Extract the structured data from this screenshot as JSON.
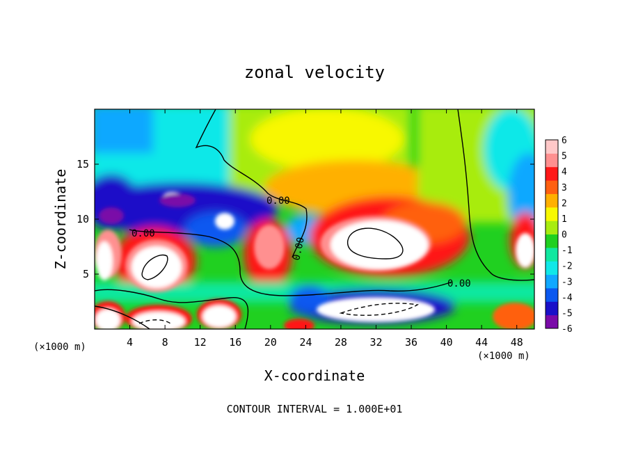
{
  "chart_data": {
    "type": "heatmap",
    "title": "zonal velocity",
    "xlabel": "X-coordinate",
    "ylabel": "Z-coordinate",
    "x_units": "(×1000 m)",
    "x_units_right": "(×1000 m)",
    "xlim": [
      0,
      50
    ],
    "ylim": [
      0,
      20
    ],
    "x_ticks": [
      4,
      8,
      12,
      16,
      20,
      24,
      28,
      32,
      36,
      40,
      44,
      48
    ],
    "y_ticks": [
      5,
      10,
      15
    ],
    "colorbar": {
      "min": -6,
      "max": 6,
      "ticks": [
        6,
        5,
        4,
        3,
        2,
        1,
        0,
        -1,
        -2,
        -3,
        -4,
        -5,
        -6
      ],
      "colors": [
        "#7a0aa8",
        "#1a10c8",
        "#0a58f0",
        "#10a8ff",
        "#10e8e8",
        "#10e8a0",
        "#20d020",
        "#a8ec10",
        "#f8f800",
        "#ffb000",
        "#ff6010",
        "#ff1818",
        "#ff9090",
        "#ffc8c8"
      ]
    },
    "values_beyond_colorbar": "white",
    "contour_interval": "CONTOUR INTERVAL = 1.000E+01",
    "contour_labels": [
      "0.00",
      "0.00",
      "0.00",
      "0.00"
    ],
    "regions": [
      {
        "feature": "strong eastward jet core",
        "x": 31,
        "z": 8,
        "value": 9
      },
      {
        "feature": "eastward cell",
        "x": 7,
        "z": 6.5,
        "value": 8
      },
      {
        "feature": "eastward cell",
        "x": 20,
        "z": 6.5,
        "value": 5
      },
      {
        "feature": "eastward cell",
        "x": 49,
        "z": 6.8,
        "value": 6
      },
      {
        "feature": "westward band",
        "x": 14,
        "z": 12,
        "value": -5
      },
      {
        "feature": "westward band",
        "x": 2,
        "z": 11,
        "value": -5
      },
      {
        "feature": "westward band",
        "x": 48.5,
        "z": 11,
        "value": -4
      },
      {
        "feature": "westward layer",
        "x": 36,
        "z": 2.2,
        "value": -4
      },
      {
        "feature": "upper-level weak eastward",
        "x": 28,
        "z": 17,
        "value": 2
      },
      {
        "feature": "upper-level weak westward",
        "x": 5,
        "z": 17,
        "value": -2
      },
      {
        "feature": "low-level eastward cells",
        "x": 15,
        "z": 1.5,
        "value": 7
      }
    ]
  }
}
